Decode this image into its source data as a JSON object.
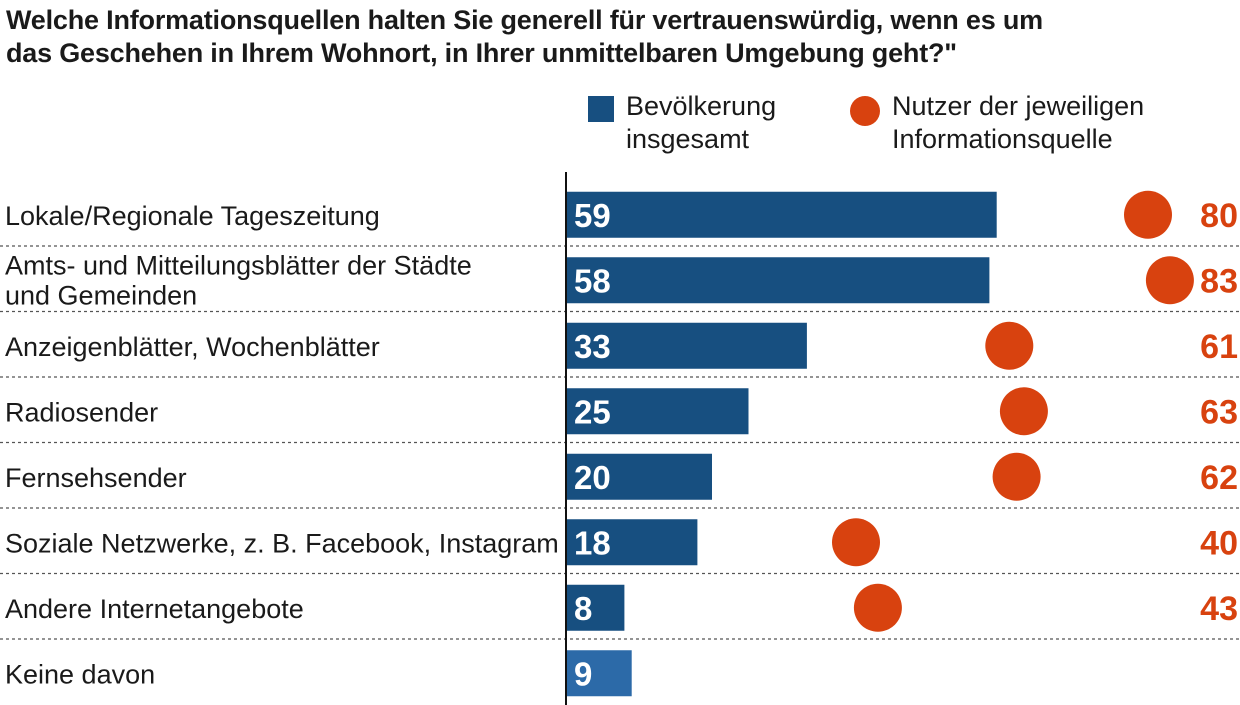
{
  "title_line1": "Welche Informationsquellen halten Sie generell für vertrauenswürdig, wenn es um",
  "title_line2": "das Geschehen in Ihrem Wohnort, in Ihrer unmittelbaren Umgebung geht?\"",
  "legend": {
    "bar_line1": "Bevölkerung",
    "bar_line2": "insgesamt",
    "dot_line1": "Nutzer der jeweiligen",
    "dot_line2": "Informationsquelle"
  },
  "colors": {
    "bar": "#174f80",
    "bar_last": "#2c6aa8",
    "dot": "#d8420f",
    "dot_text": "#d8420f",
    "separator": "#555555",
    "axis": "#111111"
  },
  "chart_data": {
    "type": "bar",
    "orientation": "horizontal",
    "title": "Welche Informationsquellen halten Sie generell für vertrauenswürdig, wenn es um das Geschehen in Ihrem Wohnort, in Ihrer unmittelbaren Umgebung geht?\"",
    "categories": [
      [
        "Lokale/Regionale Tageszeitung"
      ],
      [
        "Amts- und Mitteilungsblätter der Städte",
        "und Gemeinden"
      ],
      [
        "Anzeigenblätter, Wochenblätter"
      ],
      [
        "Radiosender"
      ],
      [
        "Fernsehsender"
      ],
      [
        "Soziale Netzwerke, z. B. Facebook, Instagram"
      ],
      [
        "Andere Internetangebote"
      ],
      [
        "Keine davon"
      ]
    ],
    "series": [
      {
        "name": "Bevölkerung insgesamt",
        "kind": "bar",
        "values": [
          59,
          58,
          33,
          25,
          20,
          18,
          8,
          9
        ]
      },
      {
        "name": "Nutzer der jeweiligen Informationsquelle",
        "kind": "dot",
        "values": [
          80,
          83,
          61,
          63,
          62,
          40,
          43,
          null
        ]
      }
    ],
    "xlim": [
      0,
      100
    ],
    "grid": false,
    "legend_position": "top"
  }
}
